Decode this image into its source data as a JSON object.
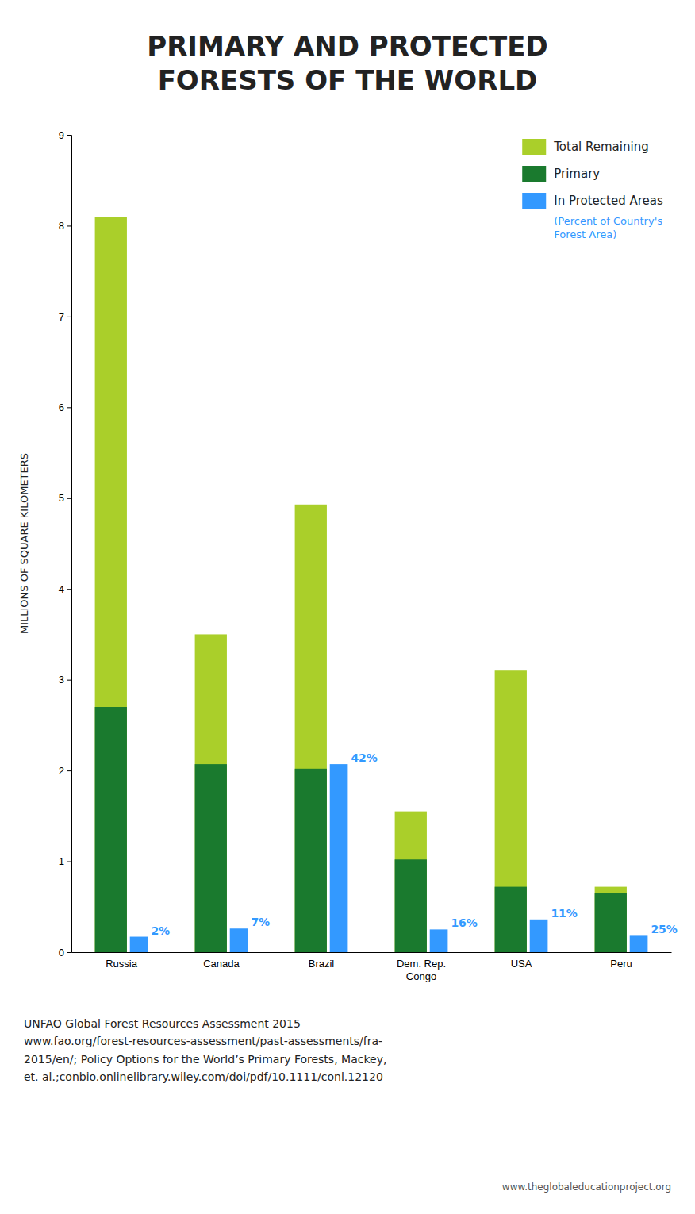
{
  "chart_data": {
    "type": "bar",
    "title": "PRIMARY AND PROTECTED\nFORESTS OF THE WORLD",
    "categories": [
      "Russia",
      "Canada",
      "Brazil",
      "Dem. Rep.\nCongo",
      "USA",
      "Peru"
    ],
    "series": [
      {
        "name": "Total Remaining",
        "color": "#aacf2a",
        "values": [
          8.1,
          3.5,
          4.93,
          1.55,
          3.1,
          0.72
        ]
      },
      {
        "name": "Primary",
        "color": "#1a7a2e",
        "values": [
          2.7,
          2.07,
          2.02,
          1.02,
          0.72,
          0.65
        ]
      },
      {
        "name": "In Protected Areas",
        "color": "#3399ff",
        "values": [
          0.17,
          0.26,
          2.07,
          0.25,
          0.36,
          0.18
        ],
        "percent_labels": [
          "2%",
          "7%",
          "42%",
          "16%",
          "11%",
          "25%"
        ]
      }
    ],
    "ylabel": "MILLIONS OF SQUARE KILOMETERS",
    "ylim": [
      0,
      9
    ],
    "yticks": [
      0,
      1,
      2,
      3,
      4,
      5,
      6,
      7,
      8,
      9
    ],
    "stacked": false,
    "grid": false,
    "legend": "upper right",
    "annotations": [
      "(Percent of Country's\nForest Area)",
      "www.theglobaleducationproject.org"
    ],
    "source": "UNFAO Global Forest Resources Assessment 2015\nwww.fao.org/forest-resources-assessment/past-assessments/fra-\n2015/en/; Policy Options for the World’s Primary Forests, Mackey,\net. al.;conbio.onlinelibrary.wiley.com/doi/pdf/10.1111/conl.12120"
  }
}
